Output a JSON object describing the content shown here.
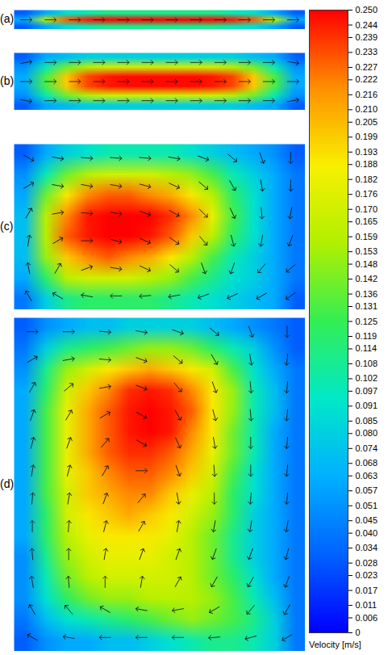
{
  "chart_data": [
    {
      "type": "heatmap",
      "title": "(a)",
      "tick_labels": false,
      "cells": [
        [
          0.03,
          0.06,
          0.09,
          0.1,
          0.11,
          0.11,
          0.11,
          0.11,
          0.11,
          0.11,
          0.1,
          0.09,
          0.06,
          0.03
        ],
        [
          0.06,
          0.16,
          0.23,
          0.245,
          0.25,
          0.25,
          0.25,
          0.25,
          0.25,
          0.25,
          0.245,
          0.23,
          0.16,
          0.06
        ],
        [
          0.03,
          0.06,
          0.09,
          0.1,
          0.11,
          0.11,
          0.11,
          0.11,
          0.11,
          0.11,
          0.1,
          0.09,
          0.06,
          0.03
        ]
      ],
      "vectors": [
        [
          90,
          90,
          90,
          90,
          90,
          90,
          90,
          90,
          90,
          90,
          90,
          90
        ]
      ]
    },
    {
      "type": "heatmap",
      "title": "(b)",
      "tick_labels": false,
      "cells": [
        [
          0.03,
          0.06,
          0.07,
          0.08,
          0.08,
          0.08,
          0.08,
          0.08,
          0.08,
          0.08,
          0.08,
          0.07,
          0.06,
          0.03
        ],
        [
          0.05,
          0.1,
          0.14,
          0.16,
          0.17,
          0.17,
          0.17,
          0.17,
          0.17,
          0.17,
          0.16,
          0.14,
          0.1,
          0.05
        ],
        [
          0.06,
          0.13,
          0.2,
          0.235,
          0.245,
          0.248,
          0.248,
          0.248,
          0.248,
          0.245,
          0.235,
          0.2,
          0.13,
          0.06
        ],
        [
          0.06,
          0.13,
          0.2,
          0.235,
          0.245,
          0.248,
          0.248,
          0.248,
          0.248,
          0.245,
          0.235,
          0.2,
          0.13,
          0.06
        ],
        [
          0.05,
          0.1,
          0.14,
          0.16,
          0.17,
          0.17,
          0.17,
          0.17,
          0.17,
          0.17,
          0.16,
          0.14,
          0.1,
          0.05
        ],
        [
          0.03,
          0.06,
          0.07,
          0.08,
          0.08,
          0.08,
          0.08,
          0.08,
          0.08,
          0.08,
          0.08,
          0.07,
          0.06,
          0.03
        ]
      ],
      "vectors": [
        [
          80,
          90,
          90,
          90,
          90,
          90,
          90,
          90,
          90,
          90,
          90,
          100
        ],
        [
          90,
          90,
          90,
          90,
          90,
          90,
          90,
          90,
          90,
          90,
          90,
          90
        ],
        [
          100,
          90,
          90,
          90,
          90,
          90,
          90,
          90,
          90,
          90,
          90,
          80
        ]
      ]
    },
    {
      "type": "heatmap",
      "title": "(c)",
      "tick_labels": false,
      "cells": [
        [
          0.04,
          0.08,
          0.11,
          0.12,
          0.12,
          0.12,
          0.12,
          0.11,
          0.1,
          0.09,
          0.08,
          0.07,
          0.06,
          0.03
        ],
        [
          0.06,
          0.12,
          0.16,
          0.17,
          0.17,
          0.17,
          0.16,
          0.15,
          0.13,
          0.11,
          0.09,
          0.08,
          0.06,
          0.04
        ],
        [
          0.07,
          0.15,
          0.2,
          0.22,
          0.23,
          0.22,
          0.21,
          0.19,
          0.16,
          0.13,
          0.1,
          0.08,
          0.06,
          0.04
        ],
        [
          0.07,
          0.16,
          0.23,
          0.245,
          0.25,
          0.25,
          0.245,
          0.23,
          0.2,
          0.16,
          0.12,
          0.09,
          0.06,
          0.04
        ],
        [
          0.07,
          0.16,
          0.22,
          0.245,
          0.25,
          0.25,
          0.25,
          0.24,
          0.22,
          0.18,
          0.13,
          0.09,
          0.06,
          0.04
        ],
        [
          0.06,
          0.14,
          0.19,
          0.22,
          0.23,
          0.23,
          0.22,
          0.21,
          0.19,
          0.16,
          0.12,
          0.09,
          0.06,
          0.04
        ],
        [
          0.05,
          0.1,
          0.14,
          0.16,
          0.17,
          0.17,
          0.17,
          0.16,
          0.15,
          0.13,
          0.1,
          0.08,
          0.06,
          0.04
        ],
        [
          0.03,
          0.06,
          0.08,
          0.09,
          0.1,
          0.1,
          0.1,
          0.1,
          0.09,
          0.08,
          0.07,
          0.06,
          0.05,
          0.03
        ]
      ],
      "vectors": [
        [
          120,
          100,
          95,
          95,
          95,
          100,
          110,
          130,
          160,
          180
        ],
        [
          60,
          100,
          100,
          100,
          105,
          115,
          130,
          150,
          170,
          180
        ],
        [
          30,
          80,
          95,
          100,
          110,
          120,
          135,
          155,
          175,
          190
        ],
        [
          10,
          60,
          90,
          105,
          115,
          125,
          140,
          165,
          190,
          200
        ],
        [
          350,
          30,
          70,
          100,
          115,
          130,
          160,
          200,
          220,
          230
        ],
        [
          330,
          300,
          280,
          270,
          265,
          260,
          250,
          245,
          240,
          235
        ]
      ]
    },
    {
      "type": "heatmap",
      "title": "(d)",
      "tick_labels": false,
      "cells": [
        [
          0.03,
          0.05,
          0.06,
          0.06,
          0.07,
          0.07,
          0.08,
          0.09,
          0.1,
          0.11,
          0.11,
          0.1,
          0.08,
          0.04
        ],
        [
          0.04,
          0.07,
          0.09,
          0.1,
          0.11,
          0.12,
          0.13,
          0.14,
          0.15,
          0.14,
          0.13,
          0.11,
          0.08,
          0.04
        ],
        [
          0.05,
          0.09,
          0.12,
          0.14,
          0.15,
          0.15,
          0.16,
          0.16,
          0.16,
          0.15,
          0.13,
          0.1,
          0.07,
          0.04
        ],
        [
          0.05,
          0.1,
          0.14,
          0.16,
          0.17,
          0.17,
          0.17,
          0.17,
          0.16,
          0.14,
          0.12,
          0.09,
          0.06,
          0.04
        ],
        [
          0.05,
          0.11,
          0.15,
          0.17,
          0.18,
          0.18,
          0.18,
          0.17,
          0.16,
          0.14,
          0.11,
          0.08,
          0.06,
          0.04
        ],
        [
          0.06,
          0.12,
          0.16,
          0.18,
          0.19,
          0.19,
          0.19,
          0.18,
          0.16,
          0.14,
          0.11,
          0.08,
          0.06,
          0.04
        ],
        [
          0.06,
          0.12,
          0.17,
          0.19,
          0.2,
          0.21,
          0.2,
          0.19,
          0.17,
          0.15,
          0.12,
          0.08,
          0.06,
          0.04
        ],
        [
          0.06,
          0.13,
          0.17,
          0.2,
          0.21,
          0.22,
          0.22,
          0.2,
          0.18,
          0.16,
          0.12,
          0.09,
          0.06,
          0.04
        ],
        [
          0.06,
          0.13,
          0.18,
          0.2,
          0.22,
          0.23,
          0.23,
          0.22,
          0.2,
          0.17,
          0.13,
          0.09,
          0.06,
          0.04
        ],
        [
          0.06,
          0.13,
          0.18,
          0.21,
          0.23,
          0.24,
          0.24,
          0.23,
          0.21,
          0.18,
          0.14,
          0.1,
          0.06,
          0.04
        ],
        [
          0.06,
          0.13,
          0.18,
          0.21,
          0.23,
          0.245,
          0.25,
          0.245,
          0.22,
          0.19,
          0.14,
          0.1,
          0.06,
          0.04
        ],
        [
          0.06,
          0.13,
          0.18,
          0.21,
          0.23,
          0.245,
          0.25,
          0.245,
          0.23,
          0.19,
          0.15,
          0.1,
          0.07,
          0.04
        ],
        [
          0.06,
          0.12,
          0.17,
          0.2,
          0.22,
          0.24,
          0.245,
          0.24,
          0.22,
          0.19,
          0.15,
          0.1,
          0.07,
          0.04
        ],
        [
          0.05,
          0.11,
          0.15,
          0.17,
          0.19,
          0.2,
          0.21,
          0.2,
          0.19,
          0.17,
          0.13,
          0.09,
          0.06,
          0.04
        ],
        [
          0.04,
          0.08,
          0.11,
          0.12,
          0.13,
          0.14,
          0.15,
          0.15,
          0.14,
          0.12,
          0.1,
          0.08,
          0.05,
          0.03
        ],
        [
          0.03,
          0.05,
          0.06,
          0.07,
          0.07,
          0.08,
          0.08,
          0.08,
          0.08,
          0.07,
          0.06,
          0.05,
          0.04,
          0.03
        ]
      ],
      "vectors": [
        [
          90,
          90,
          95,
          100,
          110,
          130,
          160,
          180
        ],
        [
          60,
          80,
          95,
          110,
          130,
          150,
          170,
          185
        ],
        [
          30,
          50,
          80,
          110,
          140,
          160,
          175,
          185
        ],
        [
          20,
          30,
          60,
          120,
          150,
          165,
          175,
          185
        ],
        [
          15,
          20,
          40,
          120,
          155,
          170,
          180,
          185
        ],
        [
          10,
          15,
          30,
          90,
          160,
          175,
          180,
          185
        ],
        [
          5,
          10,
          20,
          40,
          170,
          180,
          185,
          185
        ],
        [
          0,
          5,
          15,
          30,
          10,
          190,
          190,
          190
        ],
        [
          355,
          0,
          10,
          20,
          20,
          200,
          200,
          195
        ],
        [
          350,
          355,
          0,
          10,
          30,
          210,
          210,
          200
        ],
        [
          330,
          320,
          300,
          280,
          260,
          240,
          220,
          210
        ],
        [
          300,
          280,
          270,
          270,
          270,
          265,
          255,
          240
        ]
      ]
    }
  ],
  "colorbar": {
    "label": "Velocity [m/s]",
    "range": [
      0,
      0.25
    ],
    "ticks": [
      0,
      0.006,
      0.011,
      0.017,
      0.023,
      0.028,
      0.034,
      {
        "value": 0.04,
        "label": "0.040"
      },
      0.045,
      0.051,
      0.057,
      0.063,
      0.068,
      0.074,
      {
        "value": 0.08,
        "label": "0.080"
      },
      0.085,
      0.091,
      0.097,
      0.102,
      0.108,
      0.114,
      0.119,
      0.125,
      0.131,
      0.136,
      0.142,
      0.148,
      0.153,
      0.159,
      0.165,
      {
        "value": 0.17,
        "label": "0.170"
      },
      0.176,
      0.182,
      0.188,
      0.193,
      0.199,
      0.205,
      {
        "value": 0.21,
        "label": "0.210"
      },
      0.216,
      0.222,
      0.227,
      0.233,
      0.239,
      0.244,
      {
        "value": 0.25,
        "label": "0.250"
      }
    ]
  }
}
